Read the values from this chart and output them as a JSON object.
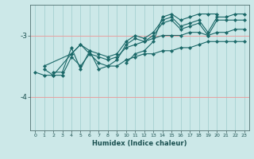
{
  "xlabel": "Humidex (Indice chaleur)",
  "background_color": "#cce8e8",
  "grid_color_h": "#e8a0a0",
  "grid_color_v": "#aad4d4",
  "line_color": "#1a6868",
  "ylim": [
    -4.55,
    -2.5
  ],
  "xlim": [
    -0.5,
    23.5
  ],
  "yticks": [
    -4,
    -3
  ],
  "xticks": [
    0,
    1,
    2,
    3,
    4,
    5,
    6,
    7,
    8,
    9,
    10,
    11,
    12,
    13,
    14,
    15,
    16,
    17,
    18,
    19,
    20,
    21,
    22,
    23
  ],
  "series": [
    [
      null,
      -3.55,
      -3.65,
      -3.65,
      -3.35,
      -3.5,
      -3.3,
      -3.45,
      -3.5,
      -3.5,
      -3.4,
      -3.35,
      -3.3,
      -3.3,
      -3.25,
      -3.25,
      -3.2,
      -3.2,
      -3.15,
      -3.1,
      -3.1,
      -3.1,
      -3.1,
      -3.1
    ],
    [
      -3.6,
      -3.65,
      -3.65,
      null,
      -3.3,
      -3.15,
      -3.3,
      -3.35,
      -3.4,
      -3.35,
      -3.2,
      -3.15,
      -3.1,
      -3.05,
      -3.0,
      -3.0,
      -3.0,
      -2.95,
      -2.95,
      -3.0,
      -2.95,
      -2.95,
      -2.9,
      -2.9
    ],
    [
      null,
      null,
      -3.6,
      -3.6,
      -3.2,
      -3.55,
      -3.25,
      -3.55,
      -3.5,
      -3.4,
      -3.15,
      -3.05,
      -3.1,
      -3.0,
      -2.8,
      -2.75,
      -2.9,
      -2.85,
      -2.8,
      -3.0,
      -2.75,
      -2.75,
      -2.75,
      -2.75
    ],
    [
      null,
      null,
      null,
      null,
      null,
      null,
      null,
      null,
      null,
      null,
      -3.45,
      -3.3,
      -3.25,
      -3.1,
      -2.7,
      -2.65,
      -2.75,
      -2.7,
      -2.65,
      -2.65,
      -2.65,
      null,
      null,
      null
    ],
    [
      null,
      -3.5,
      null,
      null,
      -3.3,
      -3.15,
      -3.25,
      -3.3,
      -3.35,
      -3.3,
      -3.1,
      -3.0,
      -3.05,
      -2.95,
      -2.75,
      -2.7,
      -2.85,
      -2.8,
      -2.75,
      -2.95,
      -2.7,
      -2.7,
      -2.65,
      -2.65
    ]
  ]
}
